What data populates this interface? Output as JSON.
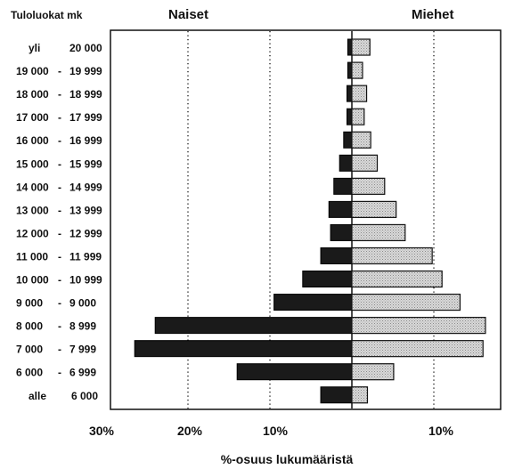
{
  "chart_data": {
    "type": "bar",
    "orientation": "horizontal-population-pyramid",
    "y_axis_title": "Tuloluokat mk",
    "left_series_label": "Naiset",
    "right_series_label": "Miehet",
    "xlabel": "%-osuus lukumääristä",
    "x_tick_labels": [
      "30%",
      "20%",
      "10%",
      "10%"
    ],
    "xlim_left": [
      0,
      30
    ],
    "xlim_right": [
      0,
      20
    ],
    "grid": "dotted vertical lines at 10% and 20% (left), 10% (right)",
    "colors": {
      "naiset": "#1a1a1a",
      "miehet": "#d4d4d4"
    },
    "categories": [
      {
        "prefix": "yli",
        "lo": "20 000",
        "hi": ""
      },
      {
        "prefix": "",
        "lo": "19 000",
        "hi": "19 999"
      },
      {
        "prefix": "",
        "lo": "18 000",
        "hi": "18 999"
      },
      {
        "prefix": "",
        "lo": "17 000",
        "hi": "17 999"
      },
      {
        "prefix": "",
        "lo": "16 000",
        "hi": "16 999"
      },
      {
        "prefix": "",
        "lo": "15 000",
        "hi": "15 999"
      },
      {
        "prefix": "",
        "lo": "14 000",
        "hi": "14 999"
      },
      {
        "prefix": "",
        "lo": "13 000",
        "hi": "13 999"
      },
      {
        "prefix": "",
        "lo": "12 000",
        "hi": "12 999"
      },
      {
        "prefix": "",
        "lo": "11 000",
        "hi": "11 999"
      },
      {
        "prefix": "",
        "lo": "10 000",
        "hi": "10 999"
      },
      {
        "prefix": "",
        "lo": "9 000",
        "hi": "9 000"
      },
      {
        "prefix": "",
        "lo": "8 000",
        "hi": "8 999"
      },
      {
        "prefix": "",
        "lo": "7 000",
        "hi": "7 999"
      },
      {
        "prefix": "",
        "lo": "6 000",
        "hi": "6 999"
      },
      {
        "prefix": "alle",
        "lo": "6 000",
        "hi": ""
      }
    ],
    "series": [
      {
        "name": "Naiset",
        "side": "left",
        "values": [
          0.5,
          0.5,
          0.6,
          0.6,
          1.0,
          1.5,
          2.2,
          2.8,
          2.6,
          3.8,
          6.0,
          9.5,
          24.0,
          26.5,
          14.0,
          3.8
        ]
      },
      {
        "name": "Miehet",
        "side": "right",
        "values": [
          2.2,
          1.3,
          1.8,
          1.5,
          2.3,
          3.1,
          4.0,
          5.4,
          6.5,
          9.8,
          11.0,
          13.2,
          16.3,
          16.0,
          5.1,
          1.9
        ]
      }
    ]
  }
}
